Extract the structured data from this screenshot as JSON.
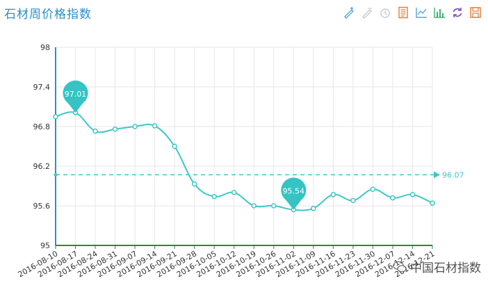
{
  "title": "石材周价格指数",
  "watermark": "中国石材指数",
  "toolbox": [
    {
      "icon": "zoom-icon",
      "color": "#5aa5d8"
    },
    {
      "icon": "zoom-reset-icon",
      "color": "#c9c9c9"
    },
    {
      "icon": "restore-icon",
      "color": "#c9c9c9"
    },
    {
      "icon": "data-view-icon",
      "color": "#e07b39"
    },
    {
      "icon": "line-chart-icon",
      "color": "#5aa5d8"
    },
    {
      "icon": "bar-chart-icon",
      "color": "#3cb371"
    },
    {
      "icon": "refresh-icon",
      "color": "#8a4fbf"
    },
    {
      "icon": "save-icon",
      "color": "#e07b39"
    }
  ],
  "chart_data": {
    "type": "line",
    "categories": [
      "2016-08-10",
      "2016-08-17",
      "2016-08-24",
      "2016-08-31",
      "2016-09-07",
      "2016-09-14",
      "2016-09-21",
      "2016-09-28",
      "2016-10-05",
      "2016-10-12",
      "2016-10-19",
      "2016-10-26",
      "2016-11-02",
      "2016-11-09",
      "2016-11-16",
      "2016-11-23",
      "2016-11-30",
      "2016-12-07",
      "2016-12-14",
      "2016-12-21"
    ],
    "series": [
      {
        "values": [
          96.95,
          97.01,
          96.73,
          96.76,
          96.8,
          96.81,
          96.5,
          95.93,
          95.74,
          95.8,
          95.6,
          95.6,
          95.54,
          95.56,
          95.77,
          95.68,
          95.85,
          95.72,
          95.77,
          95.64
        ],
        "color": "#3fc7c7"
      }
    ],
    "ylim": [
      95,
      98
    ],
    "yticks": [
      "98",
      "97.4",
      "96.8",
      "96.2",
      "95.6",
      "95"
    ],
    "markpoints": [
      {
        "label": "97.01",
        "category": "2016-08-17",
        "value": 97.01
      },
      {
        "label": "95.54",
        "category": "2016-11-02",
        "value": 95.54
      }
    ],
    "markline": {
      "label": "96.07",
      "value": 96.07
    },
    "grid": true,
    "axis_color": "#1a8f3c",
    "grid_color": "#e6e6ee"
  }
}
